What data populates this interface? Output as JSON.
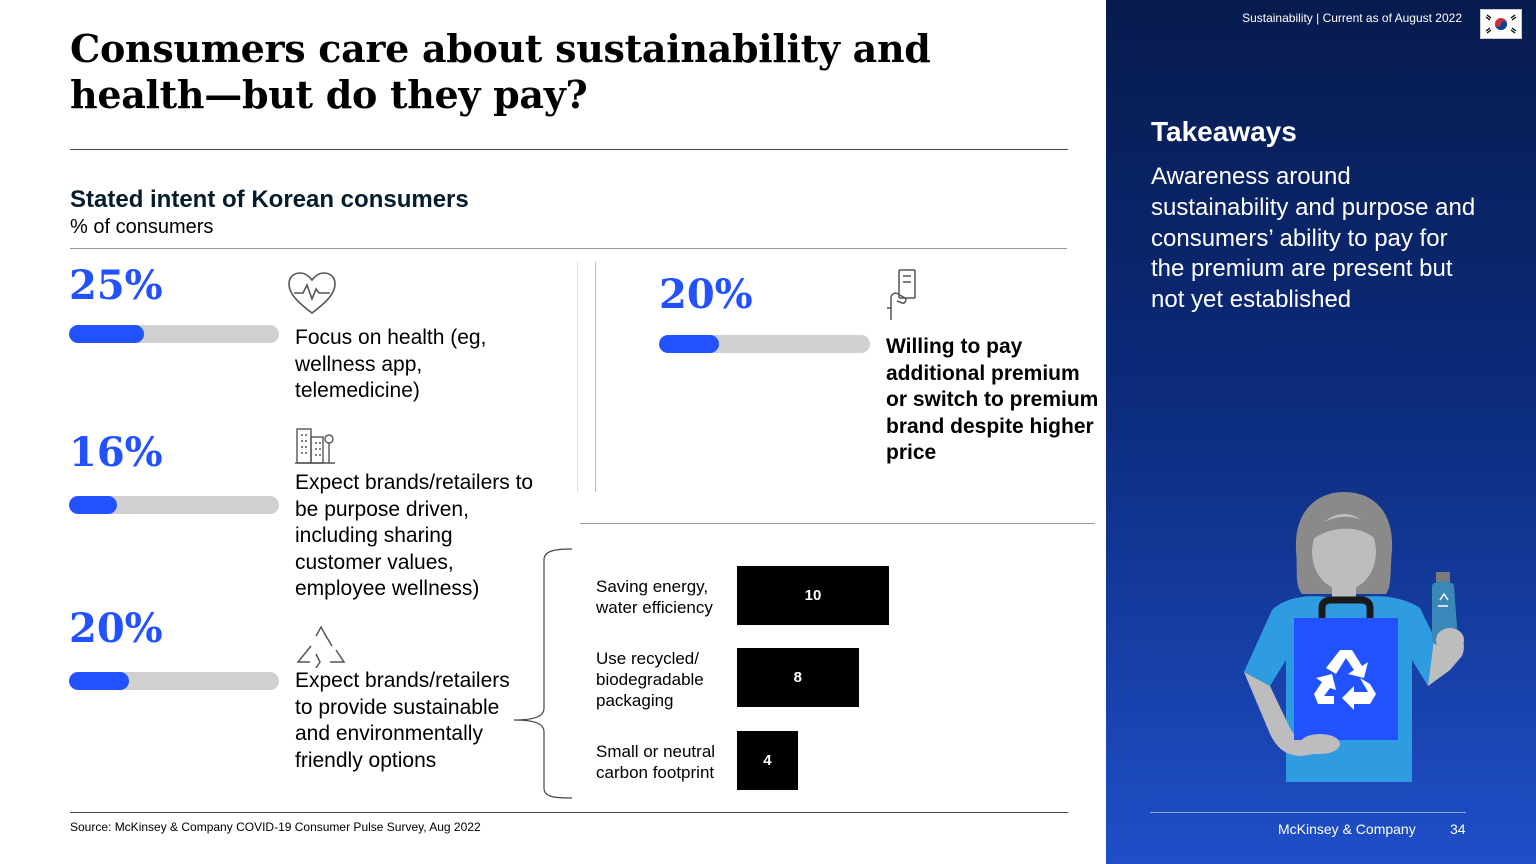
{
  "slide": {
    "title": "Consumers care about sustainability and health—but do they pay?",
    "source": "Source: McKinsey & Company COVID-19 Consumer Pulse Survey, Aug 2022"
  },
  "chart_data": [
    {
      "type": "bar",
      "title": "Stated intent of Korean consumers",
      "subtitle": "% of consumers",
      "orientation": "horizontal-progress",
      "series": [
        {
          "label": "25%",
          "value": 25,
          "caption": "Focus on health (eg, wellness app, telemedicine)",
          "icon": "heart-pulse-icon"
        },
        {
          "label": "16%",
          "value": 16,
          "caption": "Expect brands/retailers to be purpose driven, including sharing customer values, employee wellness)",
          "icon": "buildings-icon"
        },
        {
          "label": "20%",
          "value": 20,
          "caption": "Expect brands/retailers to provide sustainable and environmentally friendly options",
          "icon": "recycle-icon"
        },
        {
          "label": "20%",
          "value": 20,
          "caption": "Willing to pay additional premium or switch to premium brand despite higher price",
          "icon": "hand-card-icon"
        }
      ],
      "ylim": [
        0,
        70
      ],
      "colors": {
        "fill": "#2251ff",
        "track": "#d0d0d0"
      }
    },
    {
      "type": "bar",
      "orientation": "horizontal",
      "categories": [
        "Saving energy, water efficiency",
        "Use recycled/ biodegradable packaging",
        "Small or neutral carbon footprint"
      ],
      "category_lines": [
        [
          "Saving energy,",
          "water efficiency"
        ],
        [
          "Use recycled/",
          "biodegradable",
          "packaging"
        ],
        [
          "Small or neutral",
          "carbon footprint"
        ]
      ],
      "values": [
        10,
        8,
        4
      ],
      "xlim": [
        0,
        20
      ],
      "colors": {
        "bar": "#000000",
        "label": "#ffffff"
      }
    }
  ],
  "panel": {
    "header": "Sustainability | Current as of August 2022",
    "flag_icon": "south-korea-flag-icon",
    "takeaways_title": "Takeaways",
    "takeaways_body": "Awareness around sustainability and purpose and consumers’ ability to pay for the premium are present but not yet established",
    "illustration_icon": "woman-recycle-bag-illustration",
    "brand": "McKinsey & Company",
    "page": "34",
    "colors": {
      "top": "#071b4d",
      "bottom": "#1f4fc8"
    }
  }
}
